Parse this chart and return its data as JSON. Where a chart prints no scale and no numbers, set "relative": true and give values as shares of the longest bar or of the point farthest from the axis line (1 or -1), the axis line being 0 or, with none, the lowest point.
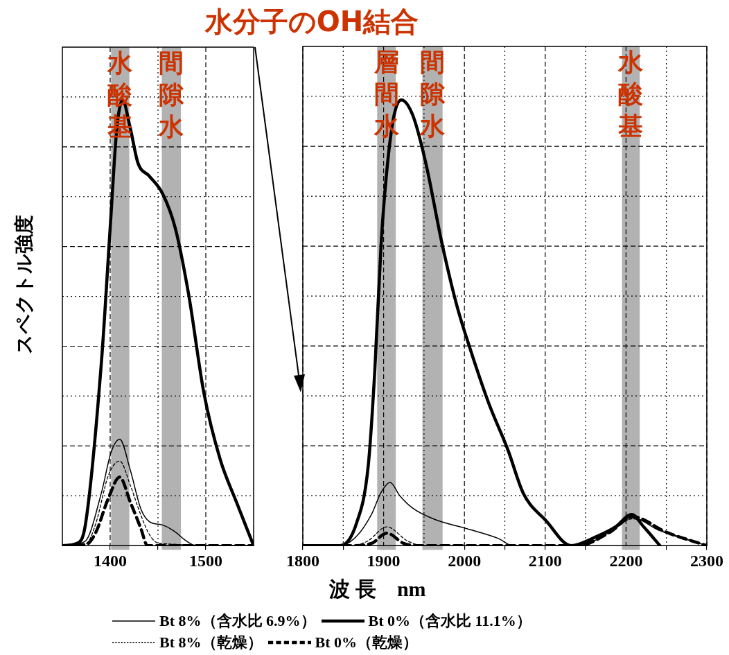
{
  "chart_data": [
    {
      "type": "line",
      "relative": true,
      "ylabel": "スペクトル強度",
      "xlim": [
        1350,
        1550
      ],
      "xticks": [
        1400,
        {
          "value": 1450,
          "label": null
        },
        1500
      ],
      "grid": true,
      "legend": "bottom",
      "marker": "none",
      "bands": [
        {
          "axis": "x",
          "from": 1401,
          "to": 1420,
          "label": "水酸基",
          "color": "#b2b2b2"
        },
        {
          "axis": "x",
          "from": 1454,
          "to": 1474,
          "label": "間隙水",
          "color": "#b2b2b2"
        }
      ],
      "series": [
        {
          "name": "Bt 8%（含水比 6.9%）",
          "color": "#000000",
          "line_style": "solid",
          "x": [
            1350,
            1365,
            1374,
            1391,
            1401,
            1410,
            1421,
            1432,
            1441,
            1455,
            1468,
            1478,
            1490,
            1550
          ],
          "values": [
            0,
            0.005,
            0.01,
            0.12,
            0.21,
            0.239,
            0.17,
            0.083,
            0.054,
            0.046,
            0.031,
            0.013,
            0,
            0
          ]
        },
        {
          "name": "Bt 0%（含水比 11.1%）",
          "color": "#000000",
          "line_style": "solid",
          "x": [
            1350,
            1365,
            1374,
            1391,
            1400,
            1407,
            1413,
            1421,
            1429,
            1441,
            1455,
            1468,
            1482,
            1498,
            1515,
            1532,
            1547,
            1550
          ],
          "values": [
            0,
            0.005,
            0.046,
            0.417,
            0.714,
            0.938,
            1,
            0.938,
            0.86,
            0.83,
            0.79,
            0.714,
            0.565,
            0.343,
            0.194,
            0.098,
            0.016,
            0
          ]
        },
        {
          "name": "Bt 8%（乾燥）",
          "color": "#000000",
          "line_style": "dotted",
          "x": [
            1350,
            1375,
            1385,
            1398,
            1410,
            1421,
            1432,
            1441,
            1451,
            1550
          ],
          "values": [
            0,
            0.005,
            0.05,
            0.157,
            0.19,
            0.136,
            0.069,
            0.025,
            0.005,
            0
          ]
        },
        {
          "name": "Bt 0%（乾燥）",
          "color": "#000000",
          "line_style": "dashed",
          "x": [
            1350,
            1375,
            1385,
            1398,
            1410,
            1421,
            1432,
            1439,
            1550
          ],
          "values": [
            0,
            0.003,
            0.03,
            0.106,
            0.154,
            0.098,
            0.039,
            0,
            0
          ]
        }
      ]
    },
    {
      "type": "line",
      "relative": true,
      "title": "水分子のOH結合",
      "xlabel": "波 長　nm",
      "xlim": [
        1800,
        2300
      ],
      "xticks": [
        1800,
        {
          "value": 1850,
          "label": null
        },
        1900,
        {
          "value": 1950,
          "label": null
        },
        2000,
        {
          "value": 2050,
          "label": null
        },
        2100,
        {
          "value": 2150,
          "label": null
        },
        2200,
        {
          "value": 2250,
          "label": null
        },
        2300
      ],
      "grid": true,
      "marker": "none",
      "bands": [
        {
          "axis": "x",
          "from": 1892,
          "to": 1915,
          "label": "層間水",
          "color": "#b2b2b2"
        },
        {
          "axis": "x",
          "from": 1948,
          "to": 1973,
          "label": "間隙水",
          "color": "#b2b2b2"
        },
        {
          "axis": "x",
          "from": 2195,
          "to": 2217,
          "label": "水酸基",
          "color": "#b2b2b2"
        }
      ],
      "series": [
        {
          "color": "#000000",
          "line_style": "solid",
          "x": [
            1800,
            1846,
            1866,
            1885,
            1897,
            1908,
            1920,
            1936,
            1963,
            2003,
            2042,
            2060,
            2140,
            2180,
            2208,
            2240,
            2300
          ],
          "values": [
            0,
            0,
            0.02,
            0.07,
            0.12,
            0.142,
            0.112,
            0.084,
            0.059,
            0.038,
            0.016,
            0,
            0,
            0.03,
            0.063,
            0.035,
            0
          ]
        },
        {
          "color": "#000000",
          "line_style": "solid",
          "x": [
            1800,
            1846,
            1866,
            1881,
            1889,
            1897,
            1905,
            1913,
            1922,
            1936,
            1952,
            1972,
            1991,
            2007,
            2030,
            2054,
            2073,
            2101,
            2132,
            2163,
            2187,
            2207,
            2222,
            2242
          ],
          "values": [
            0,
            0,
            0.048,
            0.18,
            0.39,
            0.68,
            0.86,
            0.966,
            1,
            0.966,
            0.86,
            0.68,
            0.536,
            0.442,
            0.32,
            0.214,
            0.117,
            0.056,
            0,
            0.02,
            0.042,
            0.07,
            0.042,
            0
          ]
        },
        {
          "color": "#000000",
          "line_style": "dotted",
          "x": [
            1800,
            1860,
            1880,
            1904,
            1930,
            1950,
            2140,
            2180,
            2208,
            2250,
            2300
          ],
          "values": [
            0,
            0,
            0.01,
            0.042,
            0.01,
            0,
            0,
            0.03,
            0.06,
            0.03,
            0
          ]
        },
        {
          "color": "#000000",
          "line_style": "dashed",
          "x": [
            1800,
            1860,
            1885,
            1904,
            1925,
            1945,
            2140,
            2180,
            2208,
            2250,
            2300
          ],
          "values": [
            0,
            0,
            0.005,
            0.028,
            0.005,
            0,
            0,
            0.03,
            0.065,
            0.03,
            0
          ]
        }
      ]
    }
  ]
}
